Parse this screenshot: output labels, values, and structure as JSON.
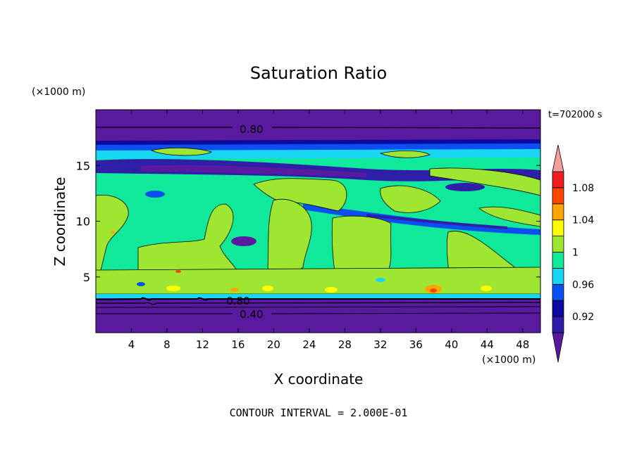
{
  "chart_data": {
    "type": "heatmap",
    "title": "Saturation Ratio",
    "xlabel": "X coordinate",
    "ylabel": "Z coordinate",
    "x_unit": "(×1000 m)",
    "y_unit": "(×1000 m)",
    "time_label": "t=702000 s",
    "footer": "CONTOUR INTERVAL = 2.000E-01",
    "xlim": [
      0,
      50
    ],
    "ylim": [
      0,
      20
    ],
    "x_ticks": [
      4,
      8,
      12,
      16,
      20,
      24,
      28,
      32,
      36,
      40,
      44,
      48
    ],
    "y_ticks": [
      5,
      10,
      15
    ],
    "contour_labels": [
      {
        "text": "0.80",
        "x": 17.5,
        "z": 18.3
      },
      {
        "text": "0.80",
        "x": 16.0,
        "z": 2.9
      },
      {
        "text": "0.40",
        "x": 17.5,
        "z": 1.7
      }
    ],
    "colorbar": {
      "levels": [
        0.9,
        0.92,
        0.94,
        0.96,
        0.98,
        1.0,
        1.02,
        1.04,
        1.06,
        1.08,
        1.1
      ],
      "colors": [
        "#5a1aa0",
        "#2f1fa8",
        "#0a0aa0",
        "#0a4ff0",
        "#19d6f5",
        "#10e89a",
        "#9ee632",
        "#ffff00",
        "#ffa500",
        "#ff4500",
        "#f01e1e",
        "#f4a0a0"
      ],
      "tick_labels": [
        "0.92",
        "0.96",
        "1",
        "1.04",
        "1.08"
      ]
    }
  }
}
